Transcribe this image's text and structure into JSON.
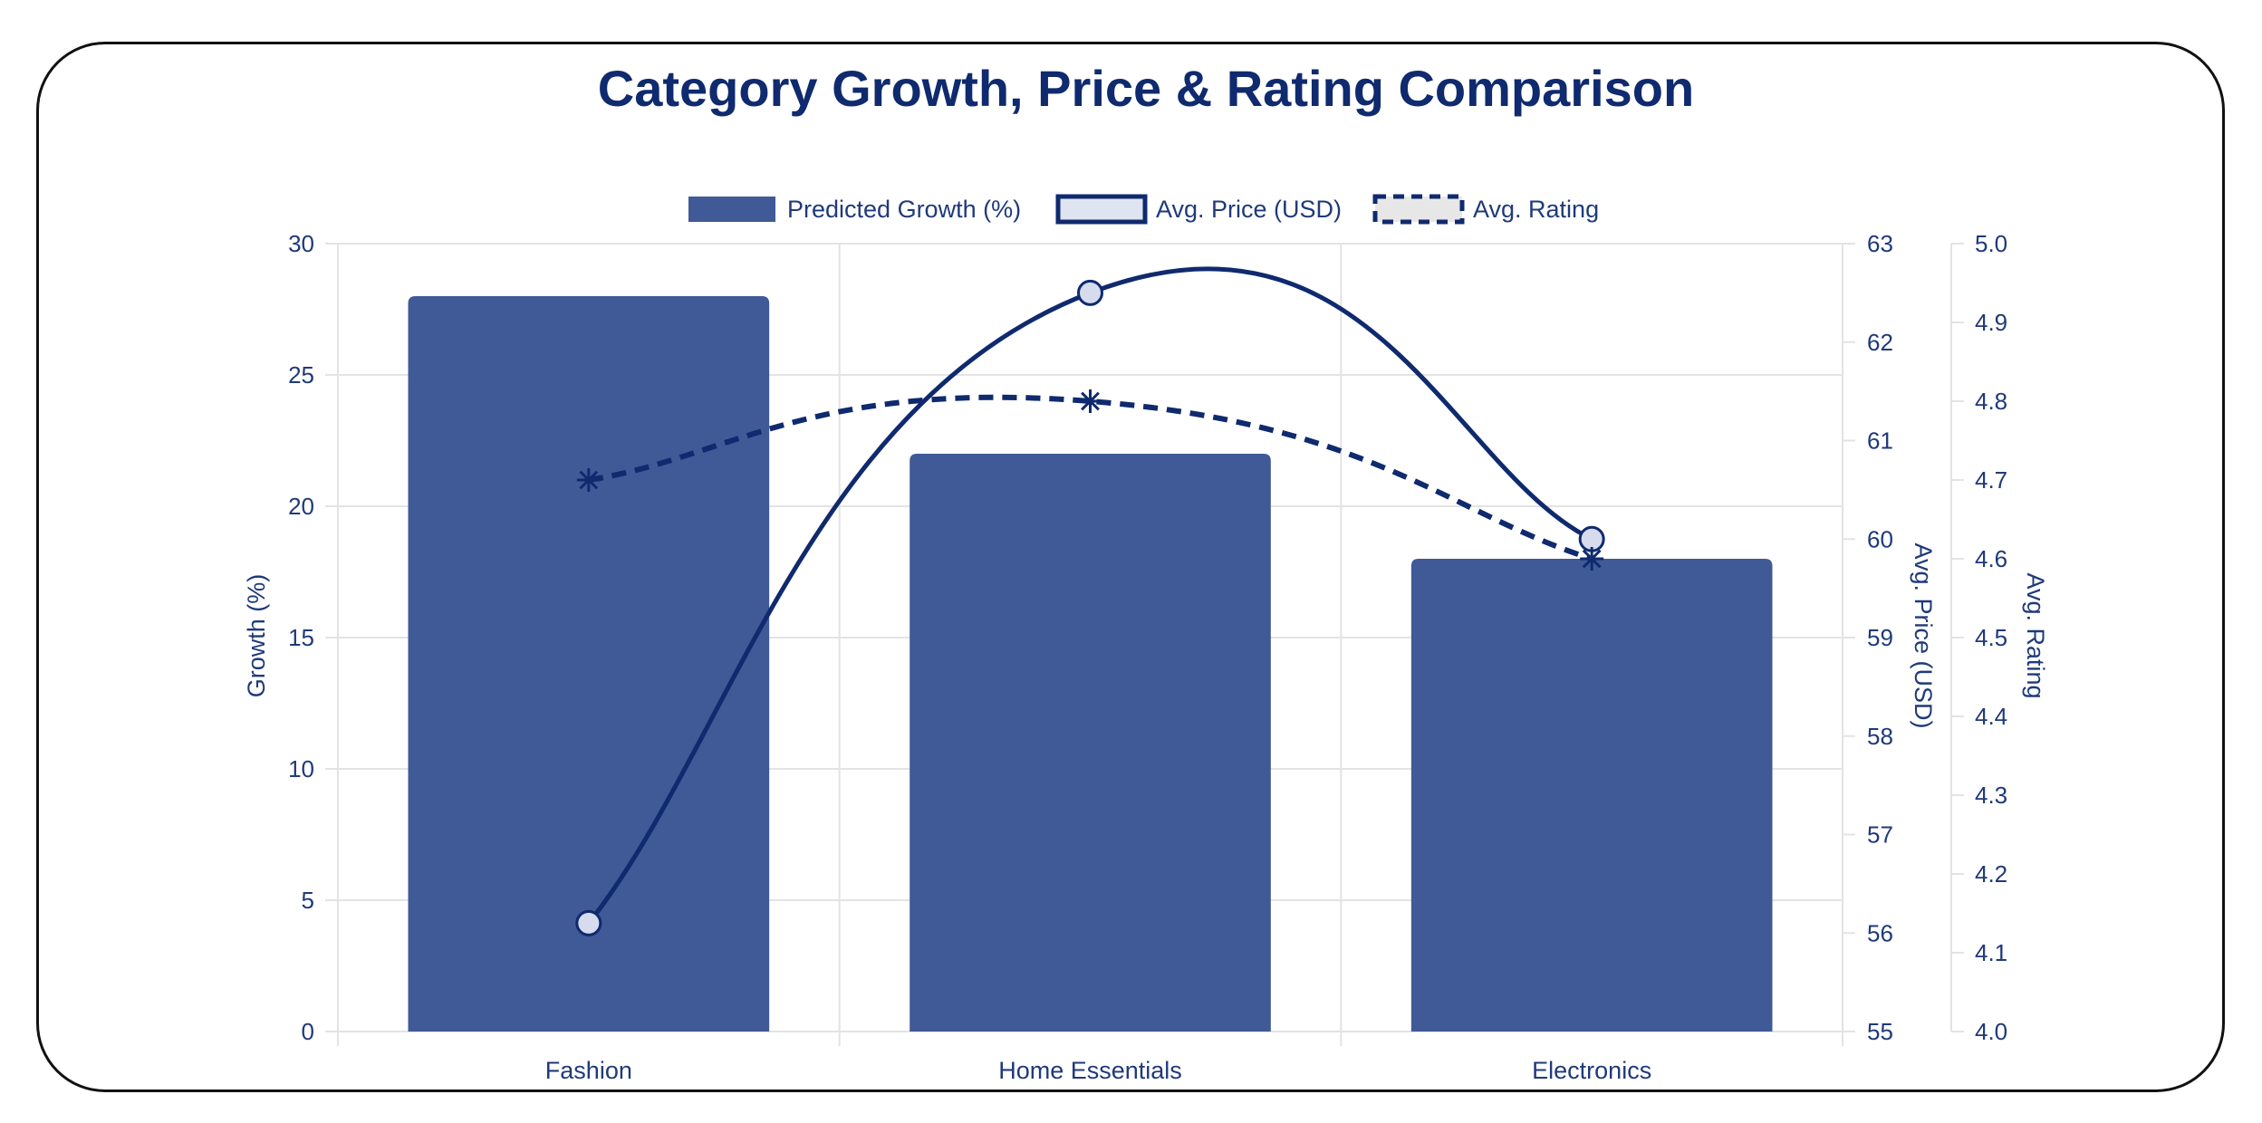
{
  "chart_data": {
    "type": "bar",
    "title": "Category Growth, Price & Rating Comparison",
    "categories": [
      "Fashion",
      "Home Essentials",
      "Electronics"
    ],
    "series": [
      {
        "name": "Predicted Growth (%)",
        "kind": "bar",
        "axis": "y",
        "values": [
          28,
          22,
          18
        ]
      },
      {
        "name": "Avg. Price (USD)",
        "kind": "line",
        "axis": "y1",
        "values": [
          56.1,
          62.5,
          60.0
        ]
      },
      {
        "name": "Avg. Rating",
        "kind": "line-dashed",
        "axis": "y2",
        "values": [
          4.7,
          4.8,
          4.6
        ]
      }
    ],
    "axes": {
      "y": {
        "label": "Growth (%)",
        "min": 0,
        "max": 30,
        "ticks": [
          "0",
          "5",
          "10",
          "15",
          "20",
          "25",
          "30"
        ]
      },
      "y1": {
        "label": "Avg. Price (USD)",
        "min": 55,
        "max": 63,
        "ticks": [
          "55",
          "56",
          "57",
          "58",
          "59",
          "60",
          "61",
          "62",
          "63"
        ]
      },
      "y2": {
        "label": "Avg. Rating",
        "min": 4.0,
        "max": 5.0,
        "ticks": [
          "4.0",
          "4.1",
          "4.2",
          "4.3",
          "4.4",
          "4.5",
          "4.6",
          "4.7",
          "4.8",
          "4.9",
          "5.0"
        ]
      }
    },
    "legend_position": "top",
    "grid": true,
    "colors": {
      "bar": "#3f5a96",
      "line": "#0f2a6e",
      "point_fill": "#d6dcee",
      "legend_box_fill": "#dfe4f1",
      "grid": "#e3e3e3",
      "text": "#1f3a7a"
    }
  }
}
